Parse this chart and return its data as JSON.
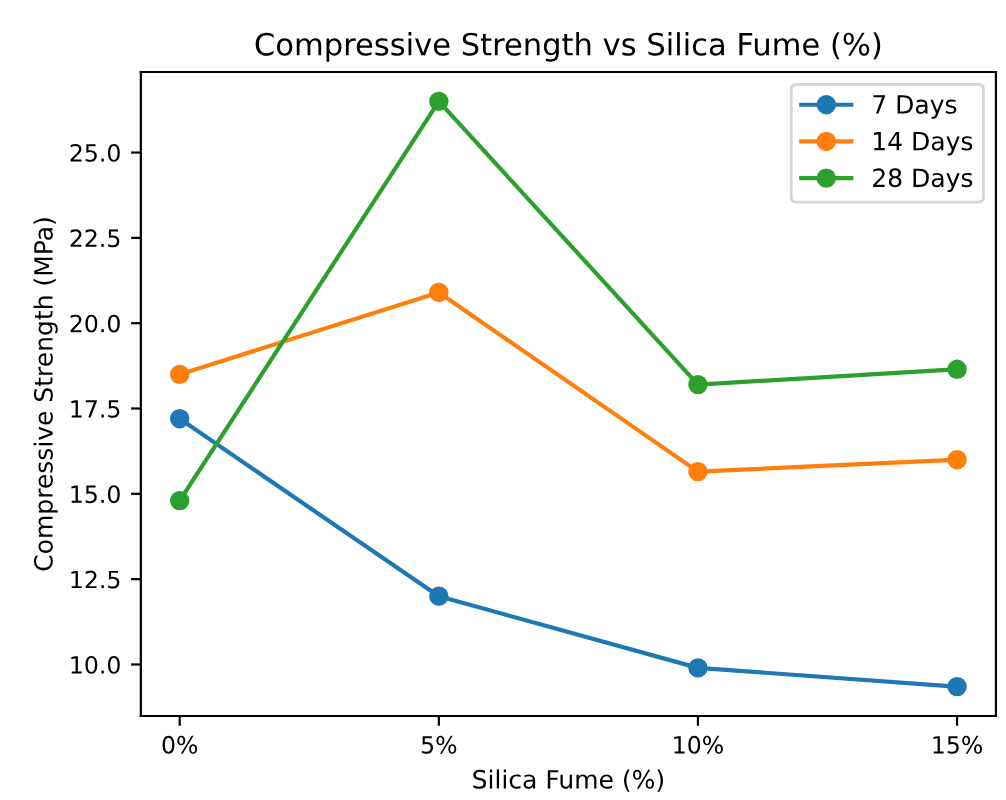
{
  "chart_data": {
    "type": "line",
    "title": "Compressive Strength vs Silica Fume (%)",
    "xlabel": "Silica Fume (%)",
    "ylabel": "Compressive Strength (MPa)",
    "categories": [
      "0%",
      "5%",
      "10%",
      "15%"
    ],
    "series": [
      {
        "name": "7 Days",
        "color": "#1f77b4",
        "values": [
          17.2,
          12.0,
          9.9,
          9.35
        ]
      },
      {
        "name": "14 Days",
        "color": "#ff7f0e",
        "values": [
          18.5,
          20.9,
          15.65,
          16.0
        ]
      },
      {
        "name": "28 Days",
        "color": "#2ca02c",
        "values": [
          14.8,
          26.5,
          18.2,
          18.65
        ]
      }
    ],
    "ylim": [
      8.49,
      27.36
    ],
    "yticks": [
      {
        "value": 10,
        "label": "10.0"
      },
      {
        "value": 12.5,
        "label": "12.5"
      },
      {
        "value": 15,
        "label": "15.0"
      },
      {
        "value": 17.5,
        "label": "17.5"
      },
      {
        "value": 20,
        "label": "20.0"
      },
      {
        "value": 22.5,
        "label": "22.5"
      },
      {
        "value": 25,
        "label": "25.0"
      }
    ],
    "marker": "circle",
    "line_style": "solid",
    "legend": "top right",
    "grid": false
  }
}
